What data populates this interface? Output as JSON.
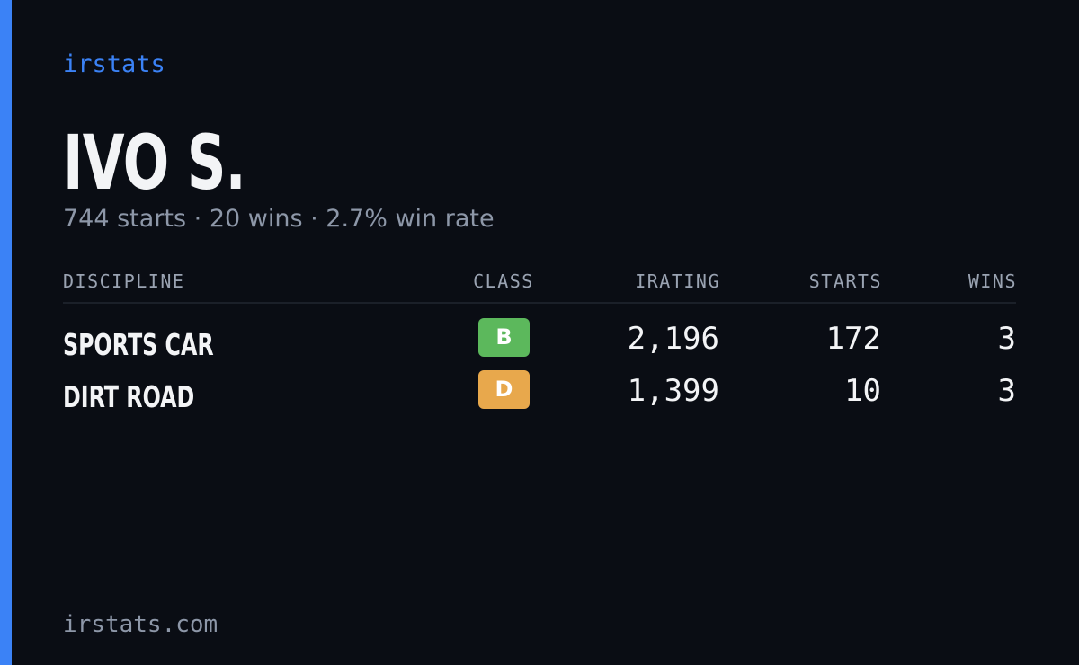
{
  "header": {
    "brand": "irstats",
    "name": "IVO S.",
    "summary": "744 starts · 20 wins · 2.7% win rate"
  },
  "table": {
    "columns": [
      "DISCIPLINE",
      "CLASS",
      "IRATING",
      "STARTS",
      "WINS"
    ],
    "rows": [
      [
        "SPORTS CAR",
        "B",
        "2,196",
        "172",
        "3"
      ],
      [
        "DIRT ROAD",
        "D",
        "1,399",
        "10",
        "3"
      ]
    ]
  },
  "footer": {
    "url": "irstats.com"
  }
}
